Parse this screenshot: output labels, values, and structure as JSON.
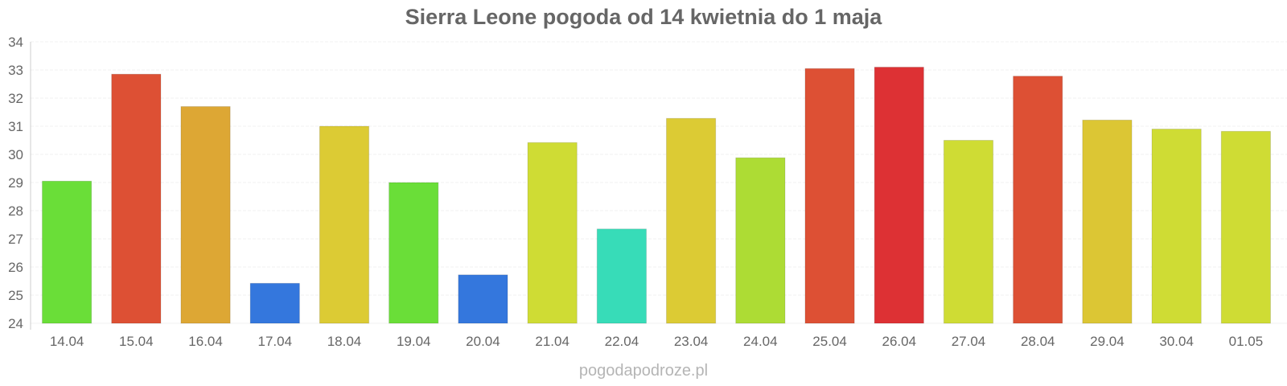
{
  "watermark": "pogodapodroze.pl",
  "chart_data": {
    "type": "bar",
    "title": "Sierra Leone pogoda od 14 kwietnia do 1 maja",
    "xlabel": "",
    "ylabel": "",
    "ylim": [
      24,
      34
    ],
    "yticks": [
      "24",
      "25",
      "26",
      "27",
      "28",
      "29",
      "30",
      "31",
      "32",
      "33",
      "34"
    ],
    "grid": true,
    "legend": "none",
    "categories": [
      "14.04",
      "15.04",
      "16.04",
      "17.04",
      "18.04",
      "19.04",
      "20.04",
      "21.04",
      "22.04",
      "23.04",
      "24.04",
      "25.04",
      "26.04",
      "27.04",
      "28.04",
      "29.04",
      "30.04",
      "01.05"
    ],
    "values": [
      29.05,
      32.85,
      31.7,
      25.42,
      31.0,
      29.0,
      25.72,
      30.42,
      27.35,
      31.28,
      29.88,
      33.05,
      33.1,
      30.5,
      32.78,
      31.22,
      30.9,
      30.82
    ],
    "colors": [
      "#6ade38",
      "#dd5034",
      "#dda734",
      "#3477dd",
      "#dccb34",
      "#6ade38",
      "#3477dd",
      "#cfdc34",
      "#37dcb8",
      "#dccb34",
      "#addc34",
      "#dd5034",
      "#dd3134",
      "#cfdc34",
      "#dd5034",
      "#dcc634",
      "#cfdc34",
      "#cfdc34"
    ]
  }
}
